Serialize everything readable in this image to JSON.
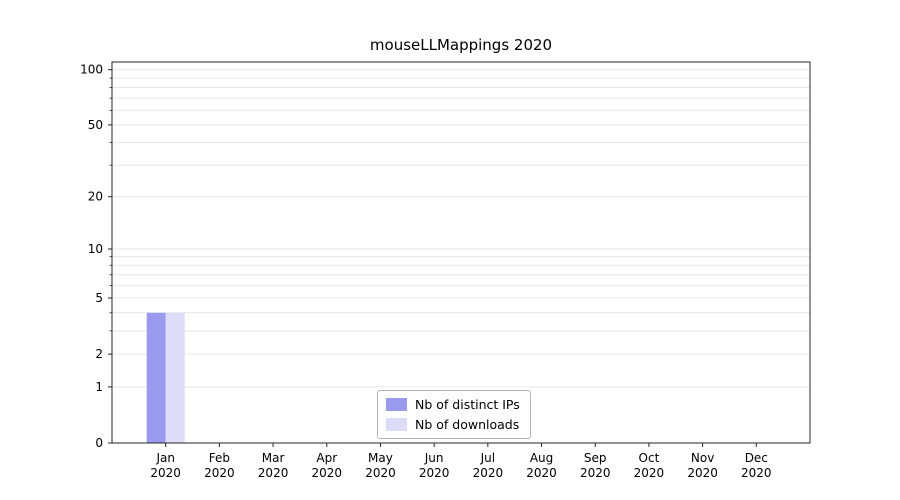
{
  "chart_data": {
    "type": "bar",
    "title": "mouseLLMappings 2020",
    "categories": [
      {
        "label": "Jan",
        "sublabel": "2020"
      },
      {
        "label": "Feb",
        "sublabel": "2020"
      },
      {
        "label": "Mar",
        "sublabel": "2020"
      },
      {
        "label": "Apr",
        "sublabel": "2020"
      },
      {
        "label": "May",
        "sublabel": "2020"
      },
      {
        "label": "Jun",
        "sublabel": "2020"
      },
      {
        "label": "Jul",
        "sublabel": "2020"
      },
      {
        "label": "Aug",
        "sublabel": "2020"
      },
      {
        "label": "Sep",
        "sublabel": "2020"
      },
      {
        "label": "Oct",
        "sublabel": "2020"
      },
      {
        "label": "Nov",
        "sublabel": "2020"
      },
      {
        "label": "Dec",
        "sublabel": "2020"
      }
    ],
    "series": [
      {
        "name": "Nb of distinct IPs",
        "color": "#9999ee",
        "values": [
          4,
          0,
          0,
          0,
          0,
          0,
          0,
          0,
          0,
          0,
          0,
          0
        ]
      },
      {
        "name": "Nb of downloads",
        "color": "#dcdcf8",
        "values": [
          4,
          0,
          0,
          0,
          0,
          0,
          0,
          0,
          0,
          0,
          0,
          0
        ]
      }
    ],
    "yticks": [
      0,
      1,
      2,
      5,
      10,
      20,
      50,
      100
    ],
    "gridlines": [
      1,
      2,
      3,
      4,
      5,
      6,
      7,
      8,
      9,
      10,
      20,
      30,
      40,
      50,
      60,
      70,
      80,
      90,
      100
    ],
    "scale": "log10(1+value)",
    "ylim": [
      0,
      110
    ],
    "grid_on": true,
    "grid_color": "#e6e6e6",
    "axis_color": "#262626",
    "legend_position": "lower center"
  }
}
